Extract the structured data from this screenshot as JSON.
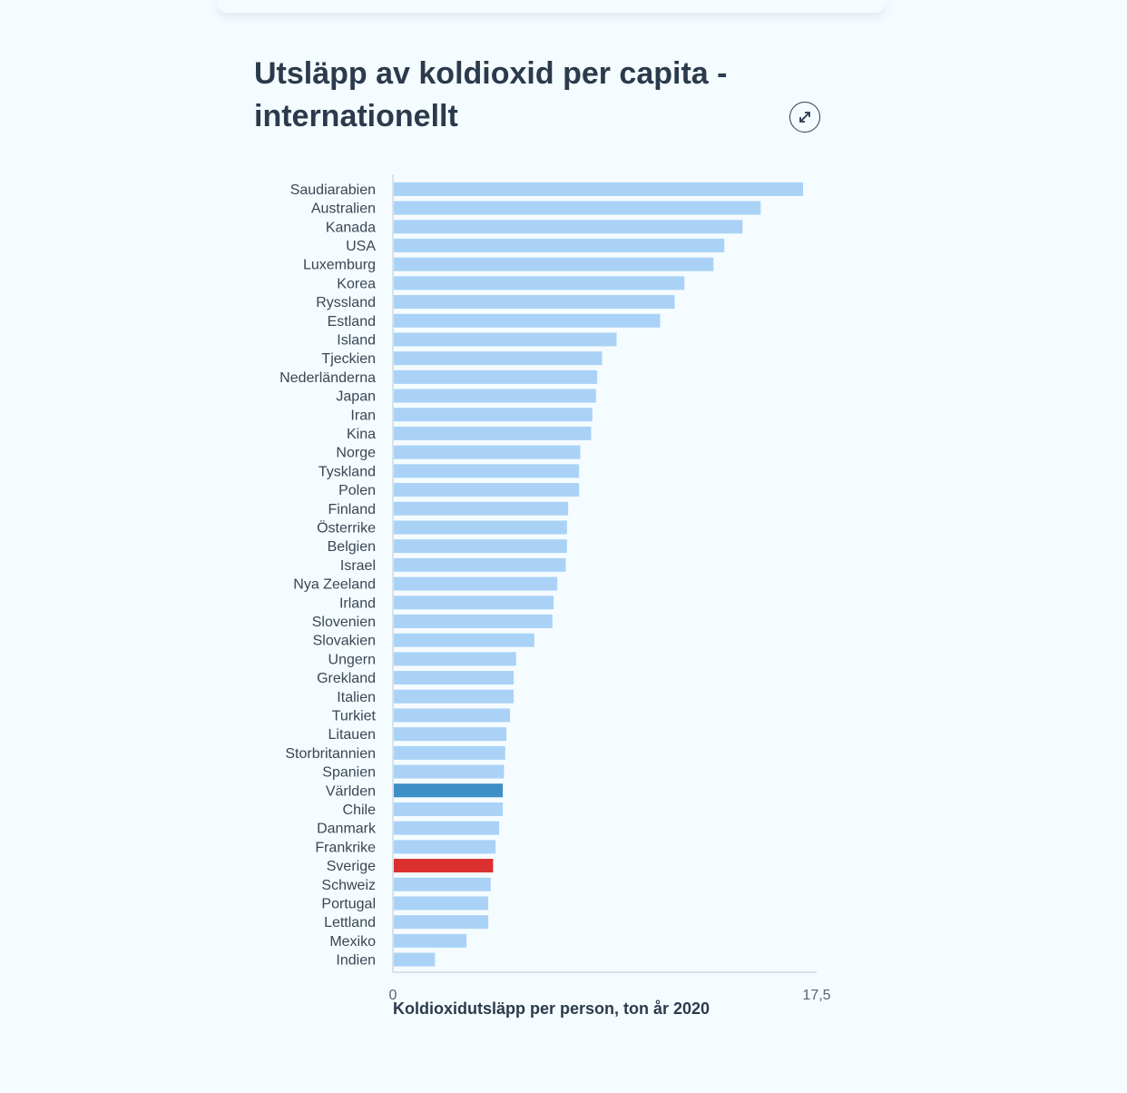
{
  "title": "Utsläpp av koldioxid per capita - internationellt",
  "expand_icon": "expand-arrows-icon",
  "chart_data": {
    "type": "bar",
    "orientation": "horizontal",
    "xlabel": "Koldioxidutsläpp per person, ton år 2020",
    "xlim": [
      0,
      17.5
    ],
    "x_tick_labels": [
      "0",
      "17,5"
    ],
    "grid": false,
    "colors": {
      "default": "#aad2f6",
      "highlight_world": "#3d8fc6",
      "highlight_sweden": "#dc2f2f"
    },
    "categories": [
      "Saudiarabien",
      "Australien",
      "Kanada",
      "USA",
      "Luxemburg",
      "Korea",
      "Ryssland",
      "Estland",
      "Island",
      "Tjeckien",
      "Nederländerna",
      "Japan",
      "Iran",
      "Kina",
      "Norge",
      "Tyskland",
      "Polen",
      "Finland",
      "Österrike",
      "Belgien",
      "Israel",
      "Nya Zeeland",
      "Irland",
      "Slovenien",
      "Slovakien",
      "Ungern",
      "Grekland",
      "Italien",
      "Turkiet",
      "Litauen",
      "Storbritannien",
      "Spanien",
      "Världen",
      "Chile",
      "Danmark",
      "Frankrike",
      "Sverige",
      "Schweiz",
      "Portugal",
      "Lettland",
      "Mexiko",
      "Indien"
    ],
    "values": [
      16.9,
      15.15,
      14.4,
      13.65,
      13.2,
      12.0,
      11.6,
      11.0,
      9.2,
      8.6,
      8.4,
      8.35,
      8.2,
      8.15,
      7.7,
      7.65,
      7.65,
      7.2,
      7.15,
      7.15,
      7.1,
      6.75,
      6.6,
      6.55,
      5.8,
      5.05,
      4.95,
      4.95,
      4.8,
      4.65,
      4.6,
      4.55,
      4.5,
      4.5,
      4.35,
      4.2,
      4.1,
      4.0,
      3.9,
      3.9,
      3.0,
      1.7
    ],
    "highlights": {
      "Världen": "highlight_world",
      "Sverige": "highlight_sweden"
    }
  }
}
